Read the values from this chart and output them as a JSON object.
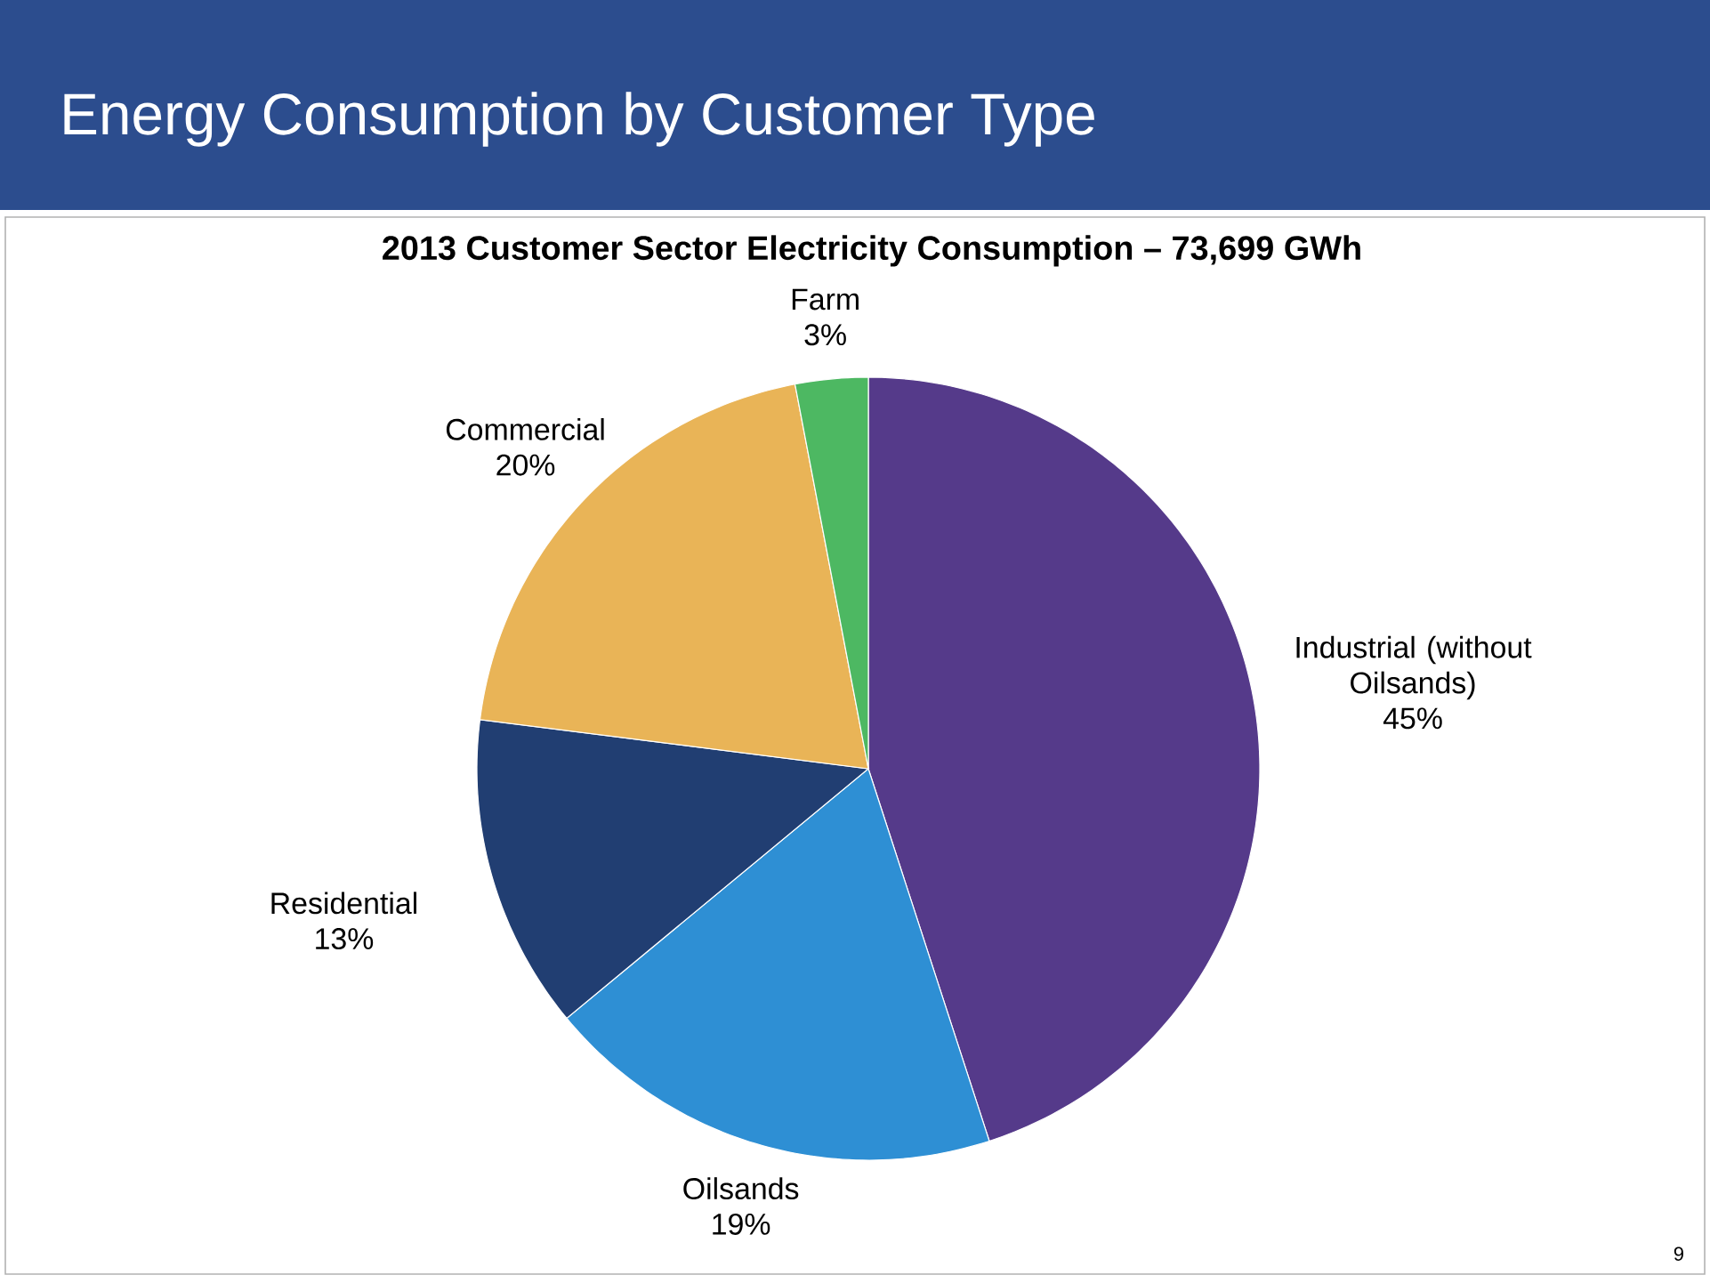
{
  "chart_data": {
    "type": "pie",
    "title": "Energy Consumption by Customer Type",
    "subtitle": "2013 Customer Sector Electricity Consumption – 73,699 GWh",
    "categories": [
      "Industrial (without Oilsands)",
      "Oilsands",
      "Residential",
      "Commercial",
      "Farm"
    ],
    "values": [
      45,
      19,
      13,
      20,
      3
    ],
    "value_labels": [
      "45%",
      "19%",
      "13%",
      "20%",
      "3%"
    ],
    "colors": [
      "#553a8a",
      "#2e8fd4",
      "#213e72",
      "#e9b457",
      "#4db862"
    ],
    "legend": false,
    "annotations": [
      "9"
    ]
  }
}
